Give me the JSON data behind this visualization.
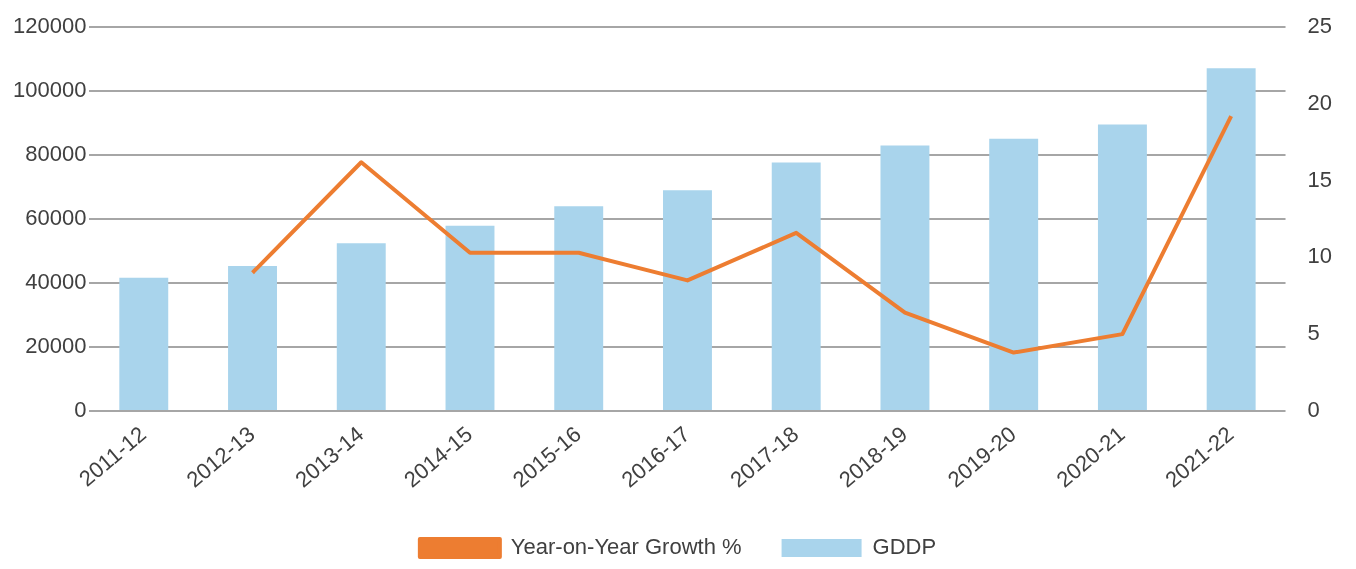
{
  "chart_data": {
    "type": "bar",
    "categories": [
      "2011-12",
      "2012-13",
      "2013-14",
      "2014-15",
      "2015-16",
      "2016-17",
      "2017-18",
      "2018-19",
      "2019-20",
      "2020-21",
      "2021-22"
    ],
    "series": [
      {
        "name": "GDDP",
        "color": "#a9d4ec",
        "values": [
          41600,
          45300,
          52400,
          57900,
          64000,
          69000,
          77700,
          83000,
          85100,
          89600,
          107200
        ]
      },
      {
        "name": "Year-on-Year Growth %",
        "type": "line",
        "axis": "y2",
        "color": "#ed7d31",
        "values": [
          null,
          9.0,
          16.2,
          10.3,
          10.3,
          8.5,
          11.6,
          6.4,
          3.8,
          5.0,
          19.2
        ]
      }
    ],
    "ylim": [
      0,
      120000
    ],
    "yticks": [
      0,
      20000,
      40000,
      60000,
      80000,
      100000,
      120000
    ],
    "y2lim": [
      0,
      25
    ],
    "y2ticks": [
      0,
      5,
      10,
      15,
      20,
      25
    ],
    "grid": "y",
    "legend": "bottom",
    "marker": "none"
  }
}
